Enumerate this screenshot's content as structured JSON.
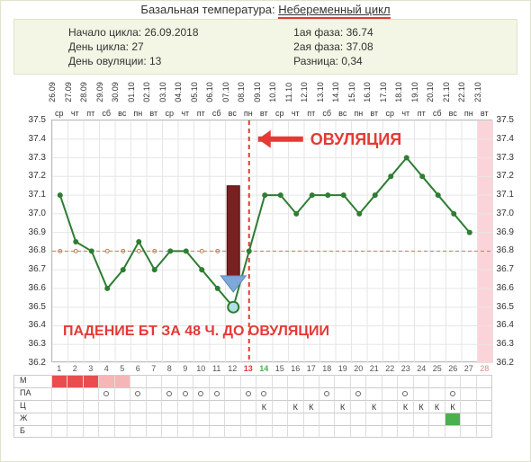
{
  "title_label": "Базальная температура: ",
  "title_value": "Небеременный цикл",
  "info": {
    "cycle_start_label": "Начало цикла:",
    "cycle_start_value": "26.09.2018",
    "cycle_day_label": "День цикла:",
    "cycle_day_value": "27",
    "ovulation_day_label": "День овуляции:",
    "ovulation_day_value": "13",
    "phase1_label": "1ая фаза:",
    "phase1_value": "36.74",
    "phase2_label": "2ая фаза:",
    "phase2_value": "37.08",
    "diff_label": "Разница:",
    "diff_value": "0,34"
  },
  "dates": [
    "26.09",
    "27.09",
    "28.09",
    "29.09",
    "30.09",
    "01.10",
    "02.10",
    "03.10",
    "04.10",
    "05.10",
    "06.10",
    "07.10",
    "08.10",
    "09.10",
    "10.10",
    "11.10",
    "12.10",
    "13.10",
    "14.10",
    "15.10",
    "16.10",
    "17.10",
    "18.10",
    "19.10",
    "20.10",
    "21.10",
    "22.10",
    "23.10"
  ],
  "dows": [
    "ср",
    "чт",
    "пт",
    "сб",
    "вс",
    "пн",
    "вт",
    "ср",
    "чт",
    "пт",
    "сб",
    "вс",
    "пн",
    "вт",
    "ср",
    "чт",
    "пт",
    "сб",
    "вс",
    "пн",
    "вт",
    "ср",
    "чт",
    "пт",
    "сб",
    "вс",
    "пн",
    "вт"
  ],
  "days": [
    "1",
    "2",
    "3",
    "4",
    "5",
    "6",
    "7",
    "8",
    "9",
    "10",
    "11",
    "12",
    "13",
    "14",
    "15",
    "16",
    "17",
    "18",
    "19",
    "20",
    "21",
    "22",
    "23",
    "24",
    "25",
    "26",
    "27",
    "28"
  ],
  "y_ticks": [
    "37.5",
    "37.4",
    "37.3",
    "37.2",
    "37.1",
    "37.0",
    "36.9",
    "36.8",
    "36.7",
    "36.6",
    "36.5",
    "36.4",
    "36.3",
    "36.2"
  ],
  "y_min": 36.2,
  "y_max": 37.5,
  "series_values": [
    37.1,
    36.85,
    36.8,
    36.6,
    36.7,
    36.85,
    36.7,
    36.8,
    36.8,
    36.7,
    36.6,
    36.5,
    36.8,
    37.1,
    37.1,
    37.0,
    37.1,
    37.1,
    37.1,
    37.0,
    37.1,
    37.2,
    37.3,
    37.2,
    37.1,
    37.0,
    36.9
  ],
  "highlight_point_index": 11,
  "ovulation_line_day": 13,
  "baseline_temp": 36.8,
  "colors": {
    "background": "#ffffff",
    "infobox_bg": "#f3f6e4",
    "infobox_border": "#dfe4c9",
    "grid": "#e6e6e6",
    "line": "#2e7d32",
    "point_fill": "#2e7d32",
    "highlight_fill": "#b2e0e6",
    "highlight_stroke": "#2e7d32",
    "ovu_red": "#e53935",
    "baseline": "#c97c55",
    "pink_band": "#fbd4d9",
    "text_day_red": "#e53935",
    "text_day_green": "#4caf50",
    "arrow_head": "#7ea8d8",
    "arrow_body_dark": "#7a2020"
  },
  "annotations": {
    "ovulation_text": "ОВУЛЯЦИЯ",
    "drop_text": "ПАДЕНИЕ БТ ЗА 48 Ч. ДО ОВУЛЯЦИИ"
  },
  "bottom_rows": {
    "M": {
      "label": "М",
      "cells": [
        "red",
        "red",
        "red",
        "pink",
        "pink",
        "",
        "",
        "",
        "",
        "",
        "",
        "",
        "",
        "",
        "",
        "",
        "",
        "",
        "",
        "",
        "",
        "",
        "",
        "",
        "",
        "",
        "",
        ""
      ]
    },
    "PA": {
      "label": "ПА",
      "cells": [
        "",
        "",
        "",
        "o",
        "",
        "o",
        "",
        "o",
        "o",
        "o",
        "o",
        "",
        "o",
        "o",
        "",
        "",
        "",
        "o",
        "",
        "o",
        "",
        "",
        "o",
        "",
        "",
        "o",
        "",
        ""
      ]
    },
    "C": {
      "label": "Ц",
      "cells": [
        "",
        "",
        "",
        "",
        "",
        "",
        "",
        "",
        "",
        "",
        "",
        "",
        "",
        "К",
        "",
        "К",
        "К",
        "",
        "К",
        "",
        "К",
        "",
        "К",
        "К",
        "К",
        "К",
        "",
        ""
      ]
    },
    "W": {
      "label": "Ж",
      "cells": [
        "",
        "",
        "",
        "",
        "",
        "",
        "",
        "",
        "",
        "",
        "",
        "",
        "",
        "",
        "",
        "",
        "",
        "",
        "",
        "",
        "",
        "",
        "",
        "",
        "",
        "green",
        "",
        ""
      ]
    },
    "B": {
      "label": "Б",
      "cells": [
        "",
        "",
        "",
        "",
        "",
        "",
        "",
        "",
        "",
        "",
        "",
        "",
        "",
        "",
        "",
        "",
        "",
        "",
        "",
        "",
        "",
        "",
        "",
        "",
        "",
        "",
        "",
        ""
      ]
    }
  }
}
